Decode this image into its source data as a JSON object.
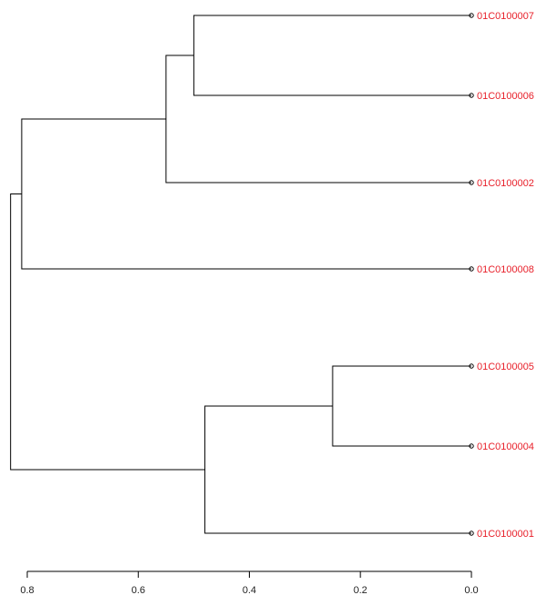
{
  "chart_data": {
    "type": "dendrogram",
    "orientation": "horizontal, leaves on right",
    "title": "",
    "xlabel": "",
    "ylabel": "",
    "xlim": [
      0.8,
      0.0
    ],
    "x_ticks": [
      "0.8",
      "0.6",
      "0.4",
      "0.2",
      "0.0"
    ],
    "x_tick_values": [
      0.8,
      0.6,
      0.4,
      0.2,
      0.0
    ],
    "leaves": [
      "01C0100007",
      "01C0100006",
      "01C0100002",
      "01C0100008",
      "01C0100005",
      "01C0100004",
      "01C0100001"
    ],
    "merges": [
      {
        "id": "A",
        "children": [
          "01C0100007",
          "01C0100006"
        ],
        "height": 0.5
      },
      {
        "id": "B",
        "children": [
          "A",
          "01C0100002"
        ],
        "height": 0.55
      },
      {
        "id": "C",
        "children": [
          "B",
          "01C0100008"
        ],
        "height": 0.81
      },
      {
        "id": "D",
        "children": [
          "01C0100005",
          "01C0100004"
        ],
        "height": 0.25
      },
      {
        "id": "E",
        "children": [
          "D",
          "01C0100001"
        ],
        "height": 0.48
      },
      {
        "id": "F",
        "children": [
          "C",
          "E"
        ],
        "height": 0.83
      }
    ],
    "colors": {
      "leaf_label": "#e8202a",
      "lines": "#000000"
    }
  }
}
